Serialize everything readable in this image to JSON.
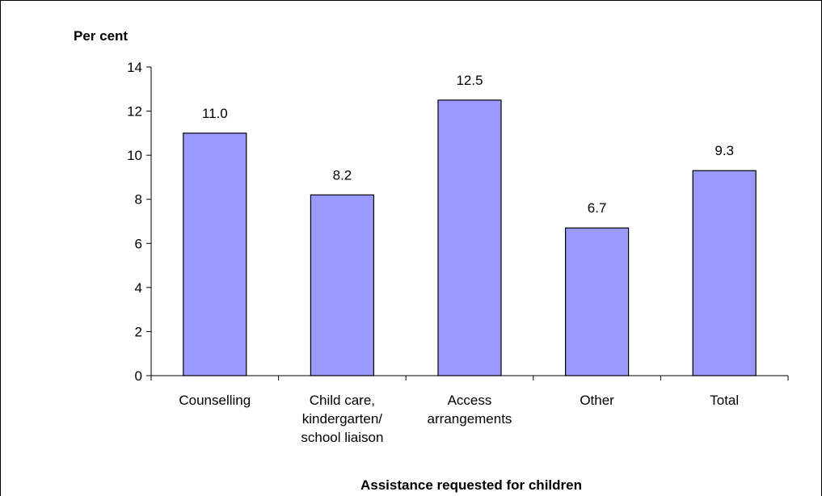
{
  "chart_data": {
    "type": "bar",
    "ylabel": "Per cent",
    "xlabel": "Assistance requested for children",
    "ylim": [
      0,
      14
    ],
    "yticks": [
      0,
      2,
      4,
      6,
      8,
      10,
      12,
      14
    ],
    "categories": [
      [
        "Counselling"
      ],
      [
        "Child care,",
        "kindergarten/",
        "school liaison"
      ],
      [
        "Access",
        "arrangements"
      ],
      [
        "Other"
      ],
      [
        "Total"
      ]
    ],
    "values": [
      11.0,
      8.2,
      12.5,
      6.7,
      9.3
    ],
    "value_labels": [
      "11.0",
      "8.2",
      "12.5",
      "6.7",
      "9.3"
    ],
    "grid": false,
    "colors": {
      "bar_fill": "#9999ff",
      "bar_stroke": "#000000"
    }
  }
}
